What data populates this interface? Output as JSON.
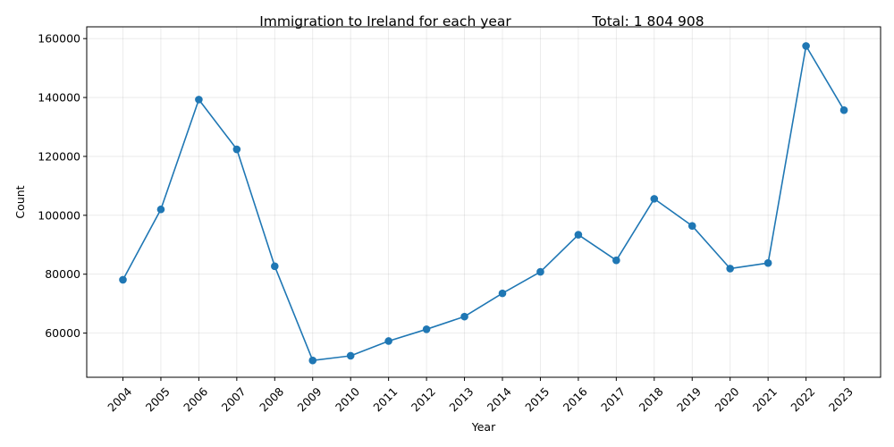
{
  "chart_data": {
    "type": "line",
    "title": "Immigration to Ireland for each year",
    "total_label": "Total: 1 804 908",
    "xlabel": "Year",
    "ylabel": "Count",
    "x": [
      2004,
      2005,
      2006,
      2007,
      2008,
      2009,
      2010,
      2011,
      2012,
      2013,
      2014,
      2015,
      2016,
      2017,
      2018,
      2019,
      2020,
      2021,
      2022,
      2023
    ],
    "x_tick_labels": [
      "2004",
      "2005",
      "2006",
      "2007",
      "2008",
      "2009",
      "2010",
      "2011",
      "2012",
      "2013",
      "2014",
      "2015",
      "2016",
      "2017",
      "2018",
      "2019",
      "2020",
      "2021",
      "2022",
      "2023"
    ],
    "series": [
      {
        "values": [
          78100,
          102000,
          139300,
          122400,
          82700,
          50700,
          52300,
          57300,
          61300,
          65600,
          73500,
          80800,
          93400,
          84700,
          105600,
          96400,
          81900,
          83800,
          157500,
          135700
        ]
      }
    ],
    "ylim": [
      45000,
      164000
    ],
    "y_ticks": [
      60000,
      80000,
      100000,
      120000,
      140000,
      160000
    ],
    "y_tick_labels": [
      "60000",
      "80000",
      "100000",
      "120000",
      "140000",
      "160000"
    ],
    "grid": true,
    "line_color": "#1f77b4",
    "marker": "circle"
  }
}
